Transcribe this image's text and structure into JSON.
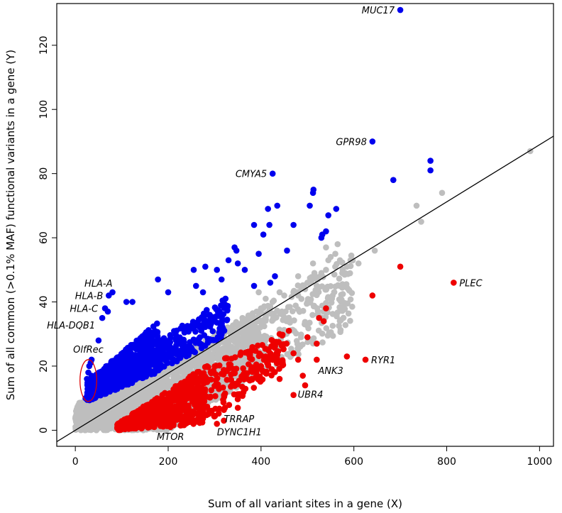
{
  "chart_data": {
    "type": "scatter",
    "title": "",
    "xlabel": "Sum of all variant sites in a gene (X)",
    "ylabel": "Sum of all common (>0.1% MAF) functional variants in a gene (Y)",
    "xlim": [
      -40,
      1030
    ],
    "ylim": [
      -5,
      133
    ],
    "xticks": [
      0,
      200,
      400,
      600,
      800,
      1000
    ],
    "yticks": [
      0,
      20,
      40,
      60,
      80,
      100,
      120
    ],
    "grid": false,
    "legend": "none",
    "colors": {
      "above": "#0000ee",
      "below": "#ee0000",
      "neutral": "#bebebe",
      "line": "#000000",
      "ellipse": "#dd0000"
    },
    "reference_line": {
      "intercept": 0,
      "slope": 0.089
    },
    "bands": {
      "neutral": [
        {
          "x": [
            0,
            200
          ],
          "ylo": [
            0,
            0
          ],
          "yhi": [
            8,
            22
          ]
        },
        {
          "x": [
            200,
            400
          ],
          "ylo": [
            0,
            18
          ],
          "yhi": [
            22,
            38
          ]
        },
        {
          "x": [
            400,
            600
          ],
          "ylo": [
            18,
            32
          ],
          "yhi": [
            38,
            56
          ]
        }
      ],
      "above": [
        {
          "x": [
            25,
            180
          ],
          "ylo": [
            9,
            18
          ],
          "yhi": [
            15,
            34
          ]
        },
        {
          "x": [
            180,
            330
          ],
          "ylo": [
            18,
            30
          ],
          "yhi": [
            28,
            42
          ]
        }
      ],
      "below": [
        {
          "x": [
            90,
            280
          ],
          "ylo": [
            0,
            2
          ],
          "yhi": [
            2,
            20
          ]
        },
        {
          "x": [
            280,
            450
          ],
          "ylo": [
            2,
            20
          ],
          "yhi": [
            20,
            30
          ]
        }
      ]
    },
    "series": [
      {
        "group": "above",
        "points": [
          [
            700,
            131
          ],
          [
            640,
            90
          ],
          [
            425,
            80
          ],
          [
            765,
            84
          ],
          [
            765,
            81
          ],
          [
            685,
            78
          ],
          [
            513,
            75
          ],
          [
            512,
            74
          ],
          [
            505,
            70
          ],
          [
            435,
            70
          ],
          [
            415,
            69
          ],
          [
            562,
            69
          ],
          [
            545,
            67
          ],
          [
            385,
            64
          ],
          [
            470,
            64
          ],
          [
            418,
            64
          ],
          [
            540,
            62
          ],
          [
            405,
            61
          ],
          [
            532,
            61
          ],
          [
            530,
            60
          ],
          [
            343,
            57
          ],
          [
            347,
            56
          ],
          [
            456,
            56
          ],
          [
            395,
            55
          ],
          [
            330,
            53
          ],
          [
            350,
            52
          ],
          [
            280,
            51
          ],
          [
            255,
            50
          ],
          [
            365,
            50
          ],
          [
            305,
            50
          ],
          [
            315,
            47
          ],
          [
            178,
            47
          ],
          [
            430,
            48
          ],
          [
            420,
            46
          ],
          [
            385,
            45
          ],
          [
            260,
            45
          ],
          [
            200,
            43
          ],
          [
            275,
            43
          ],
          [
            80,
            43
          ],
          [
            72,
            42
          ],
          [
            110,
            40
          ],
          [
            123,
            40
          ],
          [
            64,
            38
          ],
          [
            70,
            37
          ],
          [
            58,
            35
          ],
          [
            50,
            28
          ],
          [
            35,
            22
          ],
          [
            30,
            20
          ],
          [
            28,
            18
          ],
          [
            25,
            16
          ],
          [
            27,
            13
          ],
          [
            32,
            11
          ],
          [
            22,
            10
          ],
          [
            30,
            15
          ],
          [
            35,
            17
          ],
          [
            33,
            21
          ]
        ]
      },
      {
        "group": "below",
        "points": [
          [
            815,
            46
          ],
          [
            700,
            51
          ],
          [
            640,
            42
          ],
          [
            625,
            22
          ],
          [
            585,
            23
          ],
          [
            540,
            38
          ],
          [
            535,
            34
          ],
          [
            525,
            35
          ],
          [
            520,
            27
          ],
          [
            520,
            22
          ],
          [
            500,
            29
          ],
          [
            490,
            17
          ],
          [
            495,
            14
          ],
          [
            480,
            22
          ],
          [
            470,
            11
          ],
          [
            460,
            31
          ],
          [
            440,
            30
          ],
          [
            430,
            27
          ],
          [
            420,
            24
          ],
          [
            410,
            23
          ],
          [
            400,
            20
          ],
          [
            390,
            18
          ],
          [
            380,
            16
          ],
          [
            360,
            11
          ],
          [
            350,
            7
          ],
          [
            320,
            3
          ],
          [
            305,
            2
          ],
          [
            240,
            3
          ],
          [
            205,
            1
          ],
          [
            440,
            16
          ],
          [
            470,
            24
          ],
          [
            455,
            27
          ]
        ]
      },
      {
        "group": "neutral",
        "points": [
          [
            980,
            87
          ],
          [
            790,
            74
          ],
          [
            745,
            65
          ],
          [
            735,
            70
          ],
          [
            645,
            56
          ],
          [
            610,
            52
          ],
          [
            585,
            51
          ],
          [
            570,
            53
          ],
          [
            565,
            58
          ],
          [
            560,
            55
          ],
          [
            550,
            54
          ],
          [
            545,
            53
          ],
          [
            540,
            50
          ],
          [
            530,
            49
          ],
          [
            520,
            47
          ],
          [
            515,
            49
          ],
          [
            500,
            46
          ],
          [
            495,
            44
          ],
          [
            480,
            42
          ],
          [
            470,
            43
          ],
          [
            450,
            42
          ],
          [
            440,
            43
          ],
          [
            570,
            45
          ],
          [
            575,
            49
          ],
          [
            400,
            38
          ],
          [
            380,
            36
          ],
          [
            370,
            34
          ],
          [
            360,
            35
          ],
          [
            355,
            33
          ],
          [
            350,
            33
          ],
          [
            340,
            31
          ],
          [
            335,
            30
          ],
          [
            445,
            37
          ],
          [
            430,
            35
          ],
          [
            410,
            41
          ],
          [
            395,
            43
          ],
          [
            425,
            40
          ],
          [
            480,
            48
          ],
          [
            512,
            52
          ],
          [
            540,
            57
          ]
        ]
      }
    ],
    "annotations": [
      {
        "text": "MUC17",
        "x": 700,
        "y": 131,
        "anchor": "end",
        "dx": -8,
        "dy": 5
      },
      {
        "text": "GPR98",
        "x": 640,
        "y": 90,
        "anchor": "end",
        "dx": -8,
        "dy": 5
      },
      {
        "text": "CMYA5",
        "x": 425,
        "y": 80,
        "anchor": "end",
        "dx": -8,
        "dy": 5
      },
      {
        "text": "PLEC",
        "x": 815,
        "y": 46,
        "anchor": "start",
        "dx": 8,
        "dy": 5
      },
      {
        "text": "RYR1",
        "x": 625,
        "y": 22,
        "anchor": "start",
        "dx": 8,
        "dy": 5
      },
      {
        "text": "ANK3",
        "x": 520,
        "y": 22,
        "anchor": "start",
        "dx": 2,
        "dy": 20
      },
      {
        "text": "UBR4",
        "x": 470,
        "y": 11,
        "anchor": "start",
        "dx": 6,
        "dy": 4
      },
      {
        "text": "TRRAP",
        "x": 320,
        "y": 3,
        "anchor": "start",
        "dx": 0,
        "dy": 2
      },
      {
        "text": "DYNC1H1",
        "x": 305,
        "y": 2,
        "anchor": "start",
        "dx": 0,
        "dy": 16
      },
      {
        "text": "MTOR",
        "x": 205,
        "y": 1,
        "anchor": "middle",
        "dx": 0,
        "dy": 18
      },
      {
        "text": "HLA-A",
        "x": 80,
        "y": 43,
        "anchor": "end",
        "dx": 0,
        "dy": -8
      },
      {
        "text": "HLA-B",
        "x": 72,
        "y": 42,
        "anchor": "end",
        "dx": -8,
        "dy": 5
      },
      {
        "text": "HLA-C",
        "x": 64,
        "y": 38,
        "anchor": "end",
        "dx": -10,
        "dy": 5
      },
      {
        "text": "HLA-DQB1",
        "x": 58,
        "y": 35,
        "anchor": "end",
        "dx": -10,
        "dy": 15
      },
      {
        "text": "OlfRec",
        "x": 28,
        "y": 18,
        "anchor": "middle",
        "dx": 0,
        "dy": -28
      }
    ],
    "ellipse": {
      "cx": 28,
      "cy": 15.5,
      "rx": 18,
      "ry": 6.5
    }
  }
}
